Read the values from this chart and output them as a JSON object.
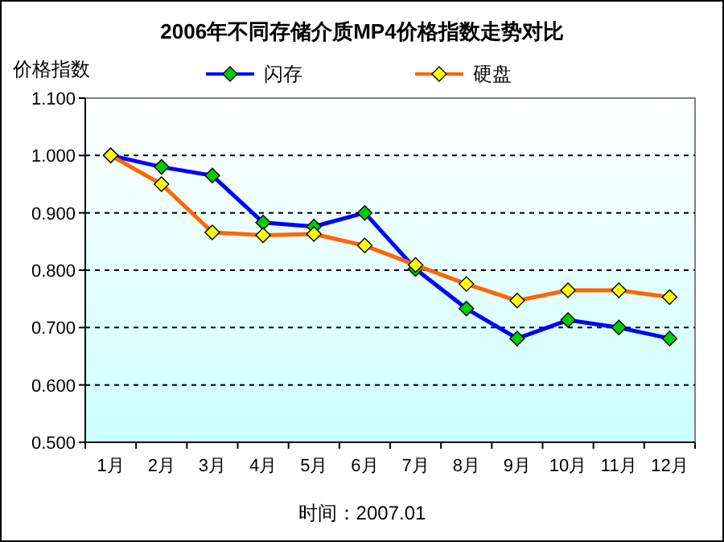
{
  "chart_data": {
    "type": "line",
    "title": "2006年不同存储介质MP4价格指数走势对比",
    "ylabel": "价格指数",
    "categories": [
      "1月",
      "2月",
      "3月",
      "4月",
      "5月",
      "6月",
      "7月",
      "8月",
      "9月",
      "10月",
      "11月",
      "12月"
    ],
    "series": [
      {
        "name": "闪存",
        "color": "#0000ff",
        "values": [
          1.0,
          0.98,
          0.965,
          0.883,
          0.876,
          0.9,
          0.802,
          0.733,
          0.681,
          0.713,
          0.7,
          0.681
        ]
      },
      {
        "name": "硬盘",
        "color": "#ff6600",
        "values": [
          1.0,
          0.95,
          0.866,
          0.861,
          0.863,
          0.843,
          0.809,
          0.776,
          0.747,
          0.765,
          0.765,
          0.753
        ]
      }
    ],
    "ylim": [
      0.5,
      1.1
    ],
    "yticks": [
      {
        "value": 0.5,
        "label": "0.500"
      },
      {
        "value": 0.6,
        "label": "0.600"
      },
      {
        "value": 0.7,
        "label": "0.700"
      },
      {
        "value": 0.8,
        "label": "0.800"
      },
      {
        "value": 0.9,
        "label": "0.900"
      },
      {
        "value": 1.0,
        "label": "1.000"
      },
      {
        "value": 1.1,
        "label": "1.100"
      }
    ],
    "grid": "y",
    "legend": "top",
    "marker": "diamond",
    "line_style": "solid",
    "annotations": [
      "时间：2007.01"
    ]
  }
}
